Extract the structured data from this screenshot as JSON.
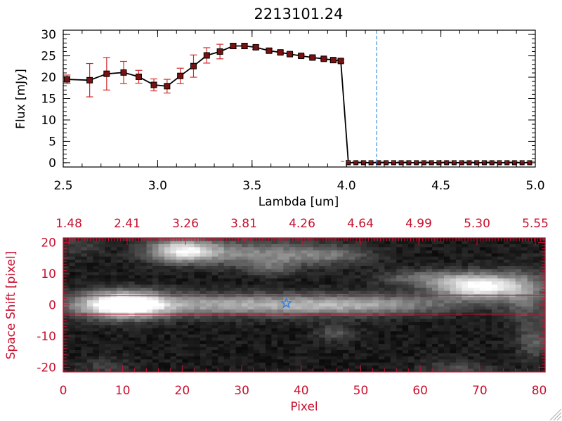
{
  "colors": {
    "axis_top": "#000000",
    "axis_bottom": "#c8102e",
    "errorbar": "#d42a2a",
    "marker_fill": "#7a1010",
    "line": "#000000",
    "vline": "#3a8fd8",
    "star": "#2f7fe0"
  },
  "chart_data": [
    {
      "type": "line",
      "title": "2213101.24",
      "xlabel": "Lambda [um]",
      "ylabel": "Flux [mJy]",
      "xlim": [
        2.5,
        5.0
      ],
      "ylim": [
        -1,
        31
      ],
      "x_ticks": [
        "2.5",
        "3.0",
        "3.5",
        "4.0",
        "4.5",
        "5.0"
      ],
      "y_ticks": [
        "0",
        "5",
        "10",
        "15",
        "20",
        "25",
        "30"
      ],
      "series": [
        {
          "x": [
            2.52,
            2.64,
            2.73,
            2.82,
            2.9,
            2.98,
            3.05,
            3.12,
            3.19,
            3.26,
            3.33,
            3.4,
            3.46,
            3.52,
            3.59,
            3.65,
            3.7,
            3.76,
            3.82,
            3.88,
            3.93,
            3.97,
            4.01,
            4.05,
            4.09,
            4.13,
            4.17,
            4.21,
            4.25,
            4.29,
            4.33,
            4.37,
            4.41,
            4.45,
            4.49,
            4.53,
            4.57,
            4.61,
            4.65,
            4.69,
            4.73,
            4.77,
            4.81,
            4.85,
            4.89,
            4.93,
            4.97
          ],
          "y": [
            19.5,
            19.3,
            20.8,
            21.1,
            20.1,
            18.2,
            17.9,
            20.3,
            22.6,
            25.1,
            26.0,
            27.3,
            27.3,
            27.0,
            26.2,
            25.8,
            25.4,
            25.0,
            24.6,
            24.3,
            24.0,
            23.8,
            0.0,
            0.0,
            0.0,
            0.0,
            0.0,
            0.0,
            0.0,
            0.0,
            0.0,
            0.0,
            0.0,
            0.0,
            0.0,
            0.0,
            0.0,
            0.0,
            0.0,
            0.0,
            0.0,
            0.0,
            0.0,
            0.0,
            0.0,
            0.0,
            0.0
          ],
          "err": [
            1.0,
            3.9,
            3.8,
            2.6,
            1.5,
            1.4,
            1.6,
            1.8,
            2.6,
            1.8,
            1.7,
            0.6,
            0.5,
            0.5,
            0.4,
            0.4,
            0.3,
            0.3,
            0.3,
            0.3,
            0.4,
            0.4,
            0,
            0,
            0,
            0,
            0,
            0,
            0,
            0,
            0,
            0,
            0,
            0,
            0,
            0,
            0,
            0,
            0,
            0,
            0,
            0,
            0,
            0,
            0,
            0,
            0
          ]
        }
      ],
      "vline_x": 4.16
    },
    {
      "type": "heatmap",
      "xlabel": "Pixel",
      "ylabel": "Space Shift [pixel]",
      "xlim": [
        0,
        81
      ],
      "ylim": [
        -21.5,
        21.5
      ],
      "x_ticks": [
        "0",
        "10",
        "20",
        "30",
        "40",
        "50",
        "60",
        "70",
        "80"
      ],
      "y_ticks": [
        "-20",
        "-10",
        "0",
        "10",
        "20"
      ],
      "top_ticks": [
        "1.48",
        "2.41",
        "3.26",
        "3.81",
        "4.26",
        "4.64",
        "4.99",
        "5.30",
        "5.55"
      ],
      "hlines_y": [
        3,
        -3
      ],
      "star": {
        "x": 37.5,
        "y": 0.5
      },
      "blobs": [
        {
          "x": 10,
          "y": 0,
          "sx": 5,
          "sy": 3,
          "amp": 1.0
        },
        {
          "x": 30,
          "y": 0,
          "sx": 18,
          "sy": 2.5,
          "amp": 0.55
        },
        {
          "x": 52,
          "y": 0,
          "sx": 10,
          "sy": 2.2,
          "amp": 0.3
        },
        {
          "x": 20,
          "y": 17.5,
          "sx": 4,
          "sy": 2.5,
          "amp": 0.75
        },
        {
          "x": 32,
          "y": 16.5,
          "sx": 9,
          "sy": 3,
          "amp": 0.4
        },
        {
          "x": 45,
          "y": 16,
          "sx": 5,
          "sy": 2,
          "amp": 0.25
        },
        {
          "x": 70,
          "y": 6,
          "sx": 5,
          "sy": 2.8,
          "amp": 0.95
        },
        {
          "x": 60,
          "y": 8.5,
          "sx": 5,
          "sy": 2,
          "amp": 0.3
        },
        {
          "x": 78,
          "y": 3,
          "sx": 3,
          "sy": 6,
          "amp": 0.3
        },
        {
          "x": 35,
          "y": 12,
          "sx": 3,
          "sy": 2,
          "amp": 0.2
        },
        {
          "x": 46,
          "y": -9,
          "sx": 2.5,
          "sy": 2,
          "amp": 0.22
        },
        {
          "x": 79,
          "y": -12,
          "sx": 2,
          "sy": 4,
          "amp": 0.25
        },
        {
          "x": 66,
          "y": -21,
          "sx": 4,
          "sy": 2,
          "amp": 0.22
        },
        {
          "x": 7,
          "y": -20,
          "sx": 3,
          "sy": 2,
          "amp": 0.15
        },
        {
          "x": 2,
          "y": 19,
          "sx": 3,
          "sy": 3,
          "amp": 0.15
        }
      ]
    }
  ]
}
